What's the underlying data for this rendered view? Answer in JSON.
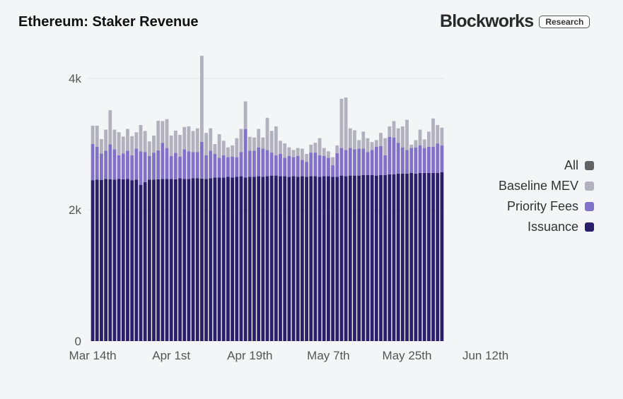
{
  "header": {
    "title": "Ethereum: Staker Revenue",
    "brand": "Blockworks",
    "badge": "Research"
  },
  "colors": {
    "issuance": "#2b1e6b",
    "priority_fees": "#8271c8",
    "baseline_mev": "#b3b1bd",
    "all": "#636363",
    "background": "#f4f5f7",
    "axis_text": "#555555"
  },
  "legend": [
    {
      "label": "All",
      "color": "#636363"
    },
    {
      "label": "Baseline MEV",
      "color": "#b3b1bd"
    },
    {
      "label": "Priority Fees",
      "color": "#8271c8"
    },
    {
      "label": "Issuance",
      "color": "#2b1e6b"
    }
  ],
  "chart_data": {
    "type": "bar",
    "stacked": true,
    "title": "Ethereum: Staker Revenue",
    "x_start": "Mar 14th",
    "x_tick_labels": [
      "Mar 14th",
      "Apr 1st",
      "Apr 19th",
      "May 7th",
      "May 25th",
      "Jun 12th"
    ],
    "y_tick_labels": [
      "0",
      "2k",
      "4k"
    ],
    "y_ticks": [
      0,
      2000,
      4000
    ],
    "ylim": [
      0,
      4200
    ],
    "legend_position": "right",
    "series": [
      {
        "name": "Issuance",
        "values": [
          2450,
          2460,
          2455,
          2470,
          2465,
          2460,
          2470,
          2465,
          2470,
          2450,
          2460,
          2380,
          2420,
          2460,
          2460,
          2465,
          2470,
          2470,
          2470,
          2465,
          2480,
          2470,
          2470,
          2480,
          2480,
          2475,
          2470,
          2480,
          2490,
          2490,
          2490,
          2500,
          2490,
          2500,
          2510,
          2490,
          2500,
          2500,
          2510,
          2500,
          2510,
          2520,
          2520,
          2510,
          2510,
          2500,
          2510,
          2500,
          2510,
          2500,
          2510,
          2510,
          2500,
          2510,
          2510,
          2500,
          2500,
          2520,
          2510,
          2520,
          2520,
          2520,
          2530,
          2530,
          2530,
          2520,
          2530,
          2530,
          2540,
          2540,
          2550,
          2550,
          2550,
          2560,
          2550,
          2560,
          2560,
          2560,
          2560,
          2560,
          2570
        ]
      },
      {
        "name": "Priority Fees",
        "values": [
          550,
          500,
          400,
          430,
          530,
          460,
          360,
          390,
          430,
          380,
          470,
          510,
          460,
          360,
          410,
          440,
          550,
          470,
          350,
          400,
          330,
          450,
          420,
          400,
          400,
          560,
          360,
          420,
          360,
          300,
          340,
          300,
          320,
          300,
          370,
          740,
          400,
          400,
          440,
          430,
          400,
          350,
          310,
          340,
          280,
          320,
          290,
          320,
          250,
          230,
          360,
          360,
          330,
          310,
          280,
          180,
          360,
          420,
          400,
          420,
          400,
          410,
          400,
          350,
          380,
          440,
          440,
          300,
          570,
          560,
          470,
          400,
          360,
          380,
          400,
          420,
          380,
          400,
          400,
          450,
          410
        ]
      },
      {
        "name": "Baseline MEV",
        "values": [
          280,
          320,
          220,
          320,
          520,
          300,
          350,
          260,
          330,
          290,
          250,
          400,
          320,
          220,
          260,
          450,
          330,
          440,
          310,
          340,
          330,
          340,
          380,
          320,
          360,
          1310,
          340,
          340,
          150,
          360,
          220,
          150,
          170,
          290,
          350,
          420,
          210,
          200,
          280,
          170,
          490,
          330,
          440,
          200,
          220,
          130,
          110,
          120,
          170,
          120,
          120,
          150,
          260,
          120,
          100,
          120,
          120,
          750,
          800,
          300,
          290,
          130,
          260,
          210,
          120,
          100,
          200,
          260,
          160,
          250,
          220,
          320,
          460,
          50,
          110,
          240,
          130,
          230,
          430,
          280,
          270
        ]
      }
    ]
  }
}
